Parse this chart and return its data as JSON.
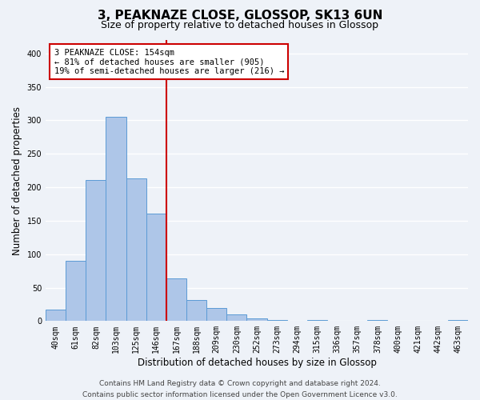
{
  "title": "3, PEAKNAZE CLOSE, GLOSSOP, SK13 6UN",
  "subtitle": "Size of property relative to detached houses in Glossop",
  "xlabel": "Distribution of detached houses by size in Glossop",
  "ylabel": "Number of detached properties",
  "bar_labels": [
    "40sqm",
    "61sqm",
    "82sqm",
    "103sqm",
    "125sqm",
    "146sqm",
    "167sqm",
    "188sqm",
    "209sqm",
    "230sqm",
    "252sqm",
    "273sqm",
    "294sqm",
    "315sqm",
    "336sqm",
    "357sqm",
    "378sqm",
    "400sqm",
    "421sqm",
    "442sqm",
    "463sqm"
  ],
  "bar_values": [
    17,
    90,
    211,
    305,
    213,
    160,
    64,
    31,
    20,
    10,
    4,
    1,
    0,
    1,
    0,
    0,
    1,
    0,
    0,
    0,
    1
  ],
  "bar_color": "#aec6e8",
  "bar_edge_color": "#5b9bd5",
  "highlight_line_color": "#cc0000",
  "ylim": [
    0,
    420
  ],
  "yticks": [
    0,
    50,
    100,
    150,
    200,
    250,
    300,
    350,
    400
  ],
  "annotation_title": "3 PEAKNAZE CLOSE: 154sqm",
  "annotation_line1": "← 81% of detached houses are smaller (905)",
  "annotation_line2": "19% of semi-detached houses are larger (216) →",
  "annotation_box_color": "#ffffff",
  "annotation_border_color": "#cc0000",
  "footer_line1": "Contains HM Land Registry data © Crown copyright and database right 2024.",
  "footer_line2": "Contains public sector information licensed under the Open Government Licence v3.0.",
  "bg_color": "#eef2f8",
  "grid_color": "#ffffff",
  "title_fontsize": 11,
  "subtitle_fontsize": 9,
  "axis_label_fontsize": 8.5,
  "tick_fontsize": 7,
  "annotation_fontsize": 7.5,
  "footer_fontsize": 6.5
}
